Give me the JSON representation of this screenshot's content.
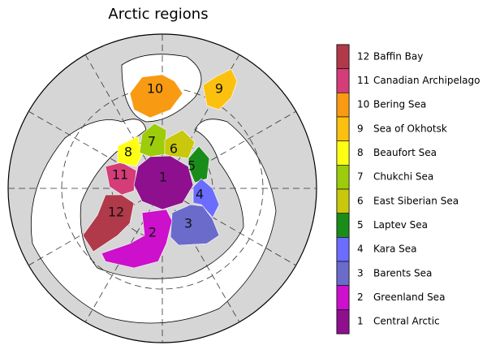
{
  "title": "Arctic regions",
  "regions": [
    {
      "label": "12",
      "name": "Baffin Bay",
      "color": "#b03a4a"
    },
    {
      "label": "11",
      "name": "Canadian Archipelago",
      "color": "#d43d78"
    },
    {
      "label": "10",
      "name": "Bering Sea",
      "color": "#f89a12"
    },
    {
      "label": "9",
      "name": "Sea of Okhotsk",
      "color": "#fcc10f"
    },
    {
      "label": "8",
      "name": "Beaufort Sea",
      "color": "#ffff14"
    },
    {
      "label": "7",
      "name": "Chukchi Sea",
      "color": "#9ccc0a"
    },
    {
      "label": "6",
      "name": "East Siberian Sea",
      "color": "#c9c80c"
    },
    {
      "label": "5",
      "name": "Laptev Sea",
      "color": "#1a8c1a"
    },
    {
      "label": "4",
      "name": "Kara Sea",
      "color": "#6c6cff"
    },
    {
      "label": "3",
      "name": "Barents Sea",
      "color": "#6b6bcc"
    },
    {
      "label": "2",
      "name": "Greenland Sea",
      "color": "#cc10cc"
    },
    {
      "label": "1",
      "name": "Central Arctic",
      "color": "#8e108e"
    }
  ]
}
